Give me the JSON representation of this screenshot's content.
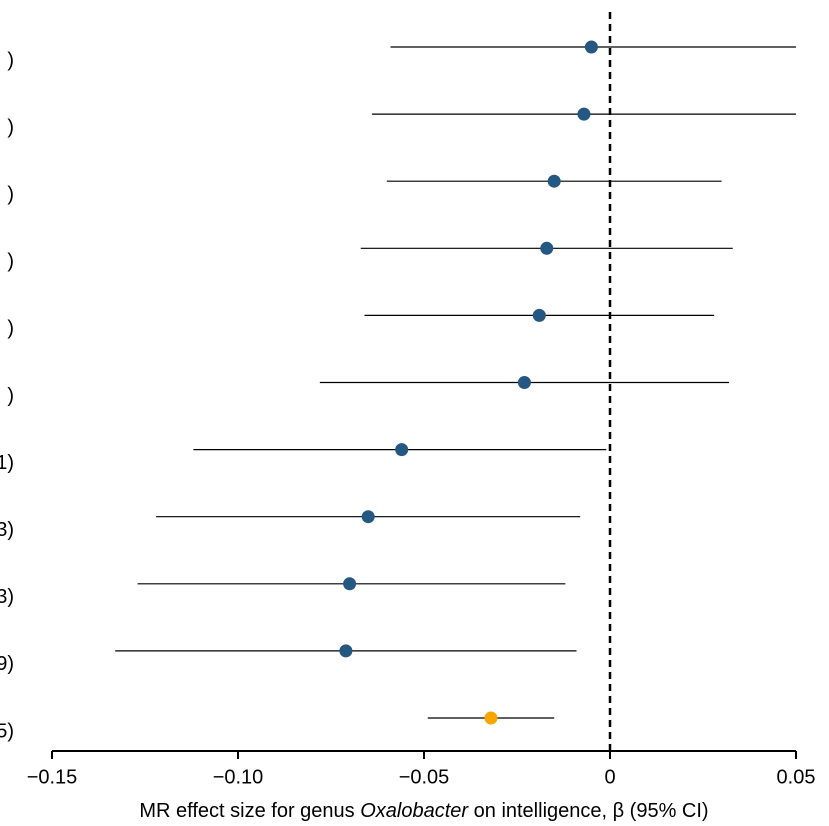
{
  "chart_data": {
    "type": "forest",
    "categories": [
      ")",
      ")",
      ")",
      ")",
      ")",
      ")",
      "1)",
      "3)",
      "3)",
      "9)",
      "5)"
    ],
    "values": [
      -0.005,
      -0.007,
      -0.015,
      -0.017,
      -0.019,
      -0.023,
      -0.056,
      -0.065,
      -0.07,
      -0.071,
      -0.032
    ],
    "ci_low": [
      -0.059,
      -0.064,
      -0.06,
      -0.067,
      -0.066,
      -0.078,
      -0.112,
      -0.122,
      -0.127,
      -0.133,
      -0.049
    ],
    "ci_high": [
      0.05,
      0.05,
      0.03,
      0.033,
      0.028,
      0.032,
      -0.001,
      -0.008,
      -0.012,
      -0.009,
      -0.015
    ],
    "colors": [
      "#245781",
      "#245781",
      "#245781",
      "#245781",
      "#245781",
      "#245781",
      "#245781",
      "#245781",
      "#245781",
      "#245781",
      "#f7a600"
    ],
    "xlim": [
      -0.15,
      0.05
    ],
    "xticks": [
      {
        "value": -0.15,
        "label": "−0.15"
      },
      {
        "value": -0.1,
        "label": "−0.10"
      },
      {
        "value": -0.05,
        "label": "−0.05"
      },
      0,
      0.05
    ],
    "ref_line": 0,
    "xlabel": [
      "MR effect size for genus ",
      "Oxalobacter",
      " on intelligence, β (95% CI)"
    ],
    "xlabel_italic": [
      false,
      true,
      false
    ]
  }
}
